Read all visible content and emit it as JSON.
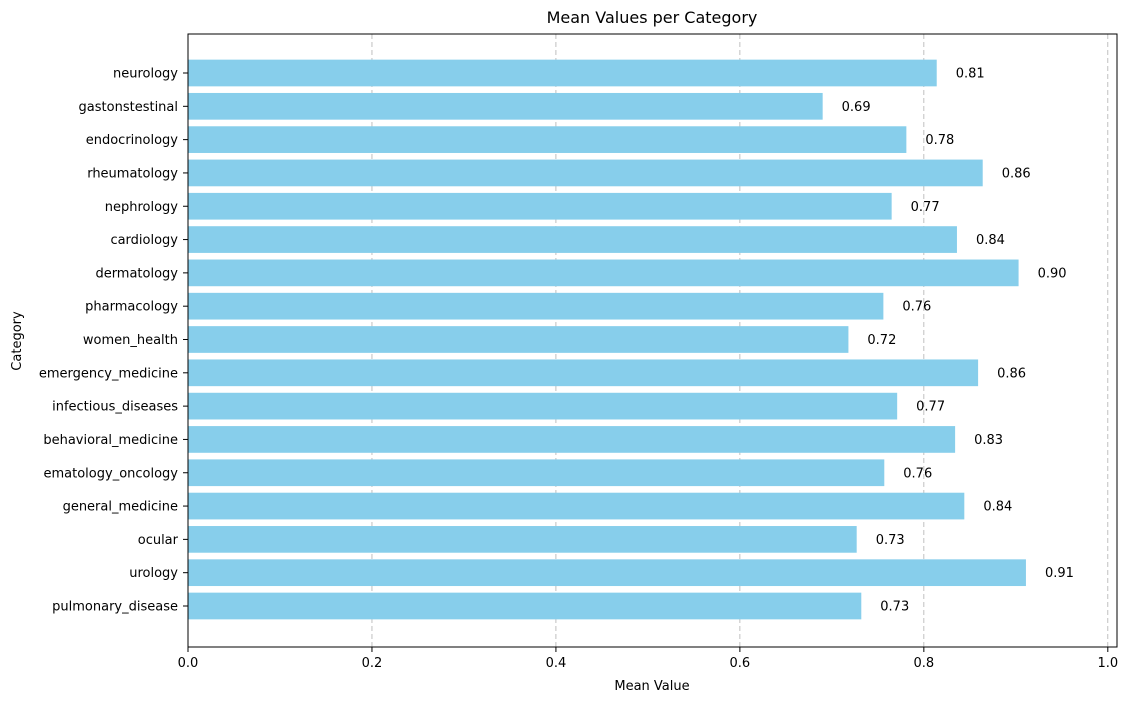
{
  "chart_data": {
    "type": "bar",
    "orientation": "horizontal",
    "title": "Mean Values per Category",
    "xlabel": "Mean Value",
    "ylabel": "Category",
    "xlim": [
      0,
      1.01
    ],
    "xticks": [
      "0.0",
      "0.2",
      "0.4",
      "0.6",
      "0.8",
      "1.0"
    ],
    "xtick_values": [
      0,
      0.2,
      0.4,
      0.6,
      0.8,
      1.0
    ],
    "grid": "x-axis dashed",
    "bar_color": "#87ceeb",
    "categories": [
      "neurology",
      "gastonstestinal",
      "endocrinology",
      "rheumatology",
      "nephrology",
      "cardiology",
      "dermatology",
      "pharmacology",
      "women_health",
      "emergency_medicine",
      "infectious_diseases",
      "behavioral_medicine",
      "ematology_oncology",
      "general_medicine",
      "ocular",
      "urology",
      "pulmonary_disease"
    ],
    "values": [
      0.814,
      0.69,
      0.781,
      0.864,
      0.765,
      0.836,
      0.903,
      0.756,
      0.718,
      0.859,
      0.771,
      0.834,
      0.757,
      0.844,
      0.727,
      0.911,
      0.732
    ],
    "value_labels": [
      "0.81",
      "0.69",
      "0.78",
      "0.86",
      "0.77",
      "0.84",
      "0.90",
      "0.76",
      "0.72",
      "0.86",
      "0.77",
      "0.83",
      "0.76",
      "0.84",
      "0.73",
      "0.91",
      "0.73"
    ]
  }
}
